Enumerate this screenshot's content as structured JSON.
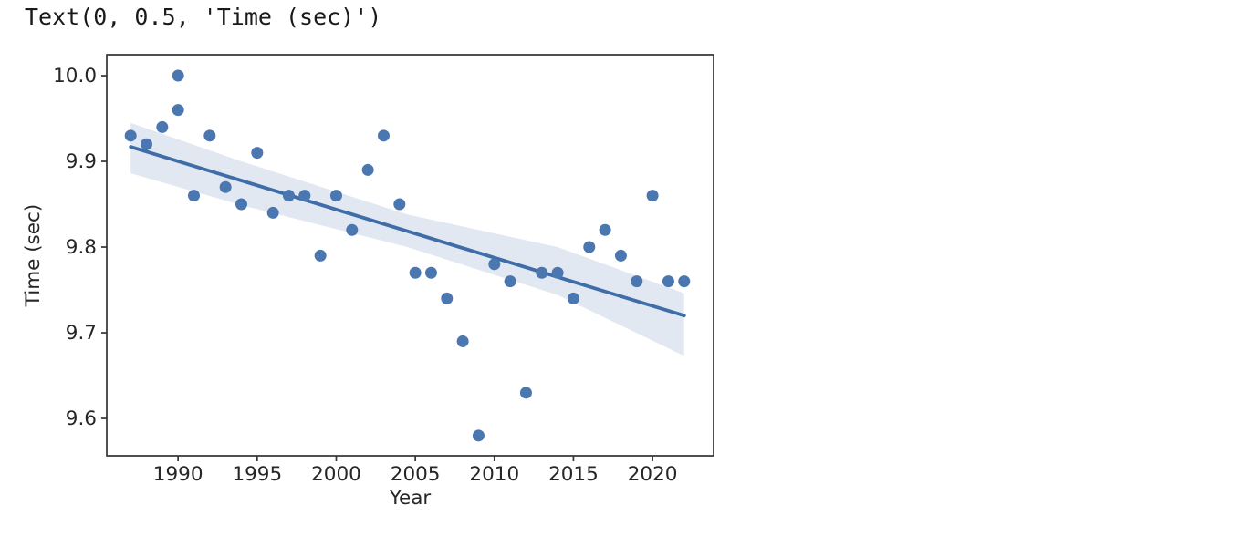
{
  "output_text": "Text(0, 0.5, 'Time (sec)')",
  "colors": {
    "scatter": "#4a77b0",
    "line": "#3e6da8",
    "band": "#4c72b0",
    "band_opacity": 0.16,
    "spine": "#333333",
    "tick": "#333333",
    "label_text": "#262626",
    "background": "#ffffff"
  },
  "chart_data": {
    "type": "scatter",
    "title": "",
    "xlabel": "Year",
    "ylabel": "Time (sec)",
    "grid": false,
    "legend": null,
    "xlim": [
      1985.49,
      2023.86
    ],
    "ylim": [
      9.5564,
      10.0245
    ],
    "xticks": [
      1990,
      1995,
      2000,
      2005,
      2010,
      2015,
      2020
    ],
    "xtick_labels": [
      "1990",
      "1995",
      "2000",
      "2005",
      "2010",
      "2015",
      "2020"
    ],
    "yticks": [
      10.0,
      9.9,
      9.8,
      9.7,
      9.6
    ],
    "ytick_labels": [
      "10.0",
      "9.9",
      "9.8",
      "9.7",
      "9.6"
    ],
    "points": [
      [
        1987,
        9.93
      ],
      [
        1988,
        9.92
      ],
      [
        1989,
        9.94
      ],
      [
        1990,
        10.0
      ],
      [
        1990,
        9.96
      ],
      [
        1991,
        9.86
      ],
      [
        1992,
        9.93
      ],
      [
        1993,
        9.87
      ],
      [
        1994,
        9.85
      ],
      [
        1995,
        9.91
      ],
      [
        1996,
        9.84
      ],
      [
        1997,
        9.86
      ],
      [
        1998,
        9.86
      ],
      [
        1999,
        9.79
      ],
      [
        2000,
        9.86
      ],
      [
        2001,
        9.82
      ],
      [
        2002,
        9.89
      ],
      [
        2003,
        9.93
      ],
      [
        2004,
        9.85
      ],
      [
        2005,
        9.77
      ],
      [
        2006,
        9.77
      ],
      [
        2007,
        9.74
      ],
      [
        2008,
        9.69
      ],
      [
        2009,
        9.58
      ],
      [
        2010,
        9.78
      ],
      [
        2011,
        9.76
      ],
      [
        2012,
        9.63
      ],
      [
        2013,
        9.77
      ],
      [
        2014,
        9.77
      ],
      [
        2015,
        9.74
      ],
      [
        2016,
        9.8
      ],
      [
        2017,
        9.82
      ],
      [
        2018,
        9.79
      ],
      [
        2019,
        9.76
      ],
      [
        2020,
        9.86
      ],
      [
        2021,
        9.76
      ],
      [
        2022,
        9.76
      ]
    ],
    "regression_line": {
      "x": [
        1987,
        2022
      ],
      "y": [
        9.917,
        9.72
      ]
    },
    "ci_band": {
      "x": [
        1987,
        1994,
        2004.5,
        2014,
        2022
      ],
      "upper": [
        9.945,
        9.9,
        9.838,
        9.8,
        9.746
      ],
      "lower": [
        9.886,
        9.849,
        9.8,
        9.744,
        9.673
      ]
    }
  }
}
